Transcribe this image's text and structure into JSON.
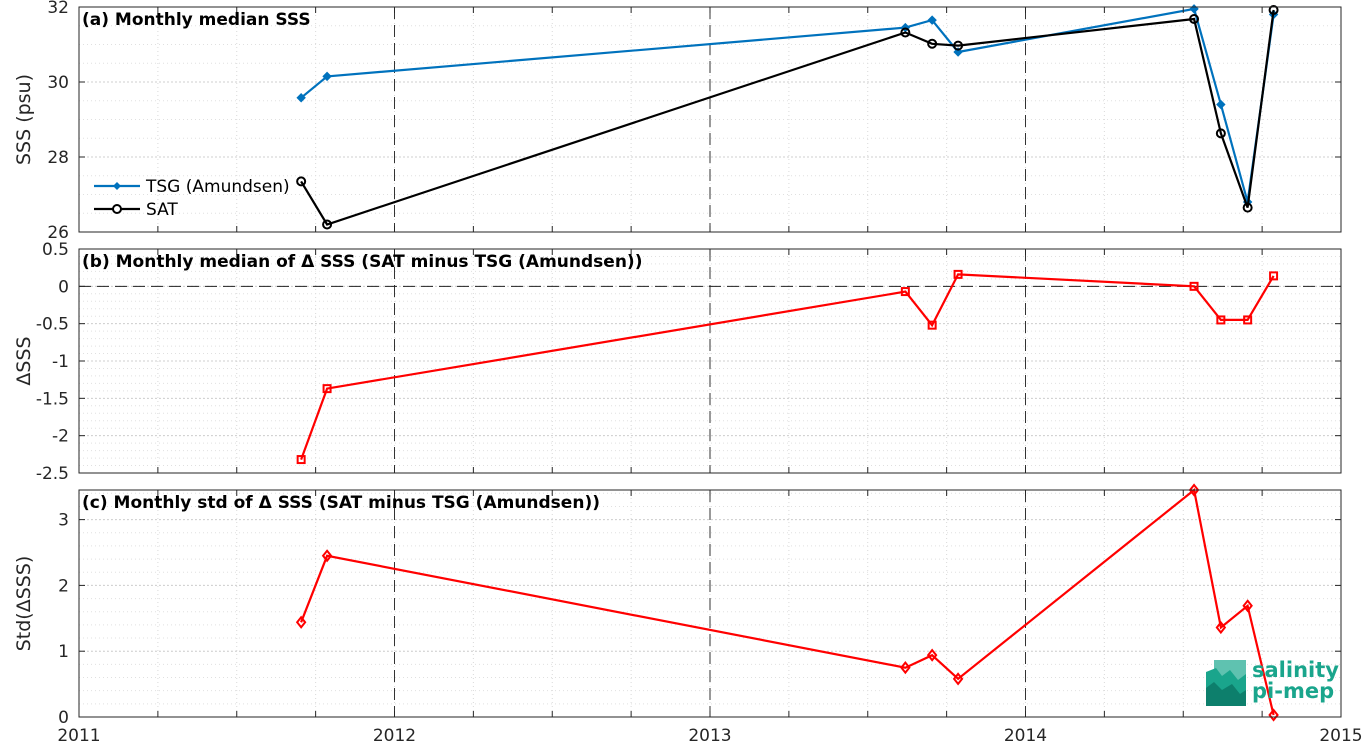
{
  "figure": {
    "x_ticks": [
      "2011",
      "2012",
      "2013",
      "2014",
      "2015"
    ]
  },
  "logo": {
    "line1": "salinity",
    "line2": "pi-mep",
    "color": "#1aa58c"
  },
  "chart_data": [
    {
      "type": "line",
      "title": "(a) Monthly median SSS",
      "ylabel": "SSS (psu)",
      "xlabel": "",
      "xlim": [
        "2011-01-01",
        "2015-01-01"
      ],
      "ylim": [
        26,
        32
      ],
      "yticks": [
        "26",
        "28",
        "30",
        "32"
      ],
      "grid": true,
      "legend": "middle-left",
      "series": [
        {
          "name": "TSG (Amundsen)",
          "color": "#0072bd",
          "marker": "diamond-filled",
          "x": [
            "2011-09-15",
            "2011-10-15",
            "2013-08-15",
            "2013-09-15",
            "2013-10-15",
            "2014-07-15",
            "2014-08-15",
            "2014-09-15",
            "2014-10-15"
          ],
          "values": [
            29.58,
            30.15,
            31.45,
            31.65,
            30.8,
            31.95,
            29.4,
            26.8,
            31.8
          ]
        },
        {
          "name": "SAT",
          "color": "#000000",
          "marker": "circle-open",
          "x": [
            "2011-09-15",
            "2011-10-15",
            "2013-08-15",
            "2013-09-15",
            "2013-10-15",
            "2014-07-15",
            "2014-08-15",
            "2014-09-15",
            "2014-10-15"
          ],
          "values": [
            27.35,
            26.2,
            31.32,
            31.02,
            30.97,
            31.68,
            28.63,
            26.65,
            31.92
          ]
        }
      ]
    },
    {
      "type": "line",
      "title": "(b) Monthly median of Δ SSS (SAT minus TSG (Amundsen))",
      "ylabel": "ΔSSS",
      "xlabel": "",
      "xlim": [
        "2011-01-01",
        "2015-01-01"
      ],
      "ylim": [
        -2.5,
        0.5
      ],
      "yticks": [
        "-2.5",
        "-2",
        "-1.5",
        "-1",
        "-0.5",
        "0",
        "0.5"
      ],
      "grid": true,
      "zero_line": true,
      "series": [
        {
          "color": "#ff0000",
          "marker": "square-open",
          "x": [
            "2011-09-15",
            "2011-10-15",
            "2013-08-15",
            "2013-09-15",
            "2013-10-15",
            "2014-07-15",
            "2014-08-15",
            "2014-09-15",
            "2014-10-15"
          ],
          "values": [
            -2.32,
            -1.37,
            -0.07,
            -0.52,
            0.16,
            0.0,
            -0.45,
            -0.45,
            0.14
          ]
        }
      ]
    },
    {
      "type": "line",
      "title": "(c) Monthly std of Δ SSS (SAT minus TSG (Amundsen))",
      "ylabel": "Std(ΔSSS)",
      "xlabel": "",
      "xlim": [
        "2011-01-01",
        "2015-01-01"
      ],
      "ylim": [
        0,
        3.45
      ],
      "yticks": [
        "0",
        "1",
        "2",
        "3"
      ],
      "grid": true,
      "series": [
        {
          "color": "#ff0000",
          "marker": "diamond-open",
          "x": [
            "2011-09-15",
            "2011-10-15",
            "2013-08-15",
            "2013-09-15",
            "2013-10-15",
            "2014-07-15",
            "2014-08-15",
            "2014-09-15",
            "2014-10-15"
          ],
          "values": [
            1.44,
            2.45,
            0.75,
            0.94,
            0.58,
            3.45,
            1.36,
            1.69,
            0.03
          ]
        }
      ]
    }
  ]
}
